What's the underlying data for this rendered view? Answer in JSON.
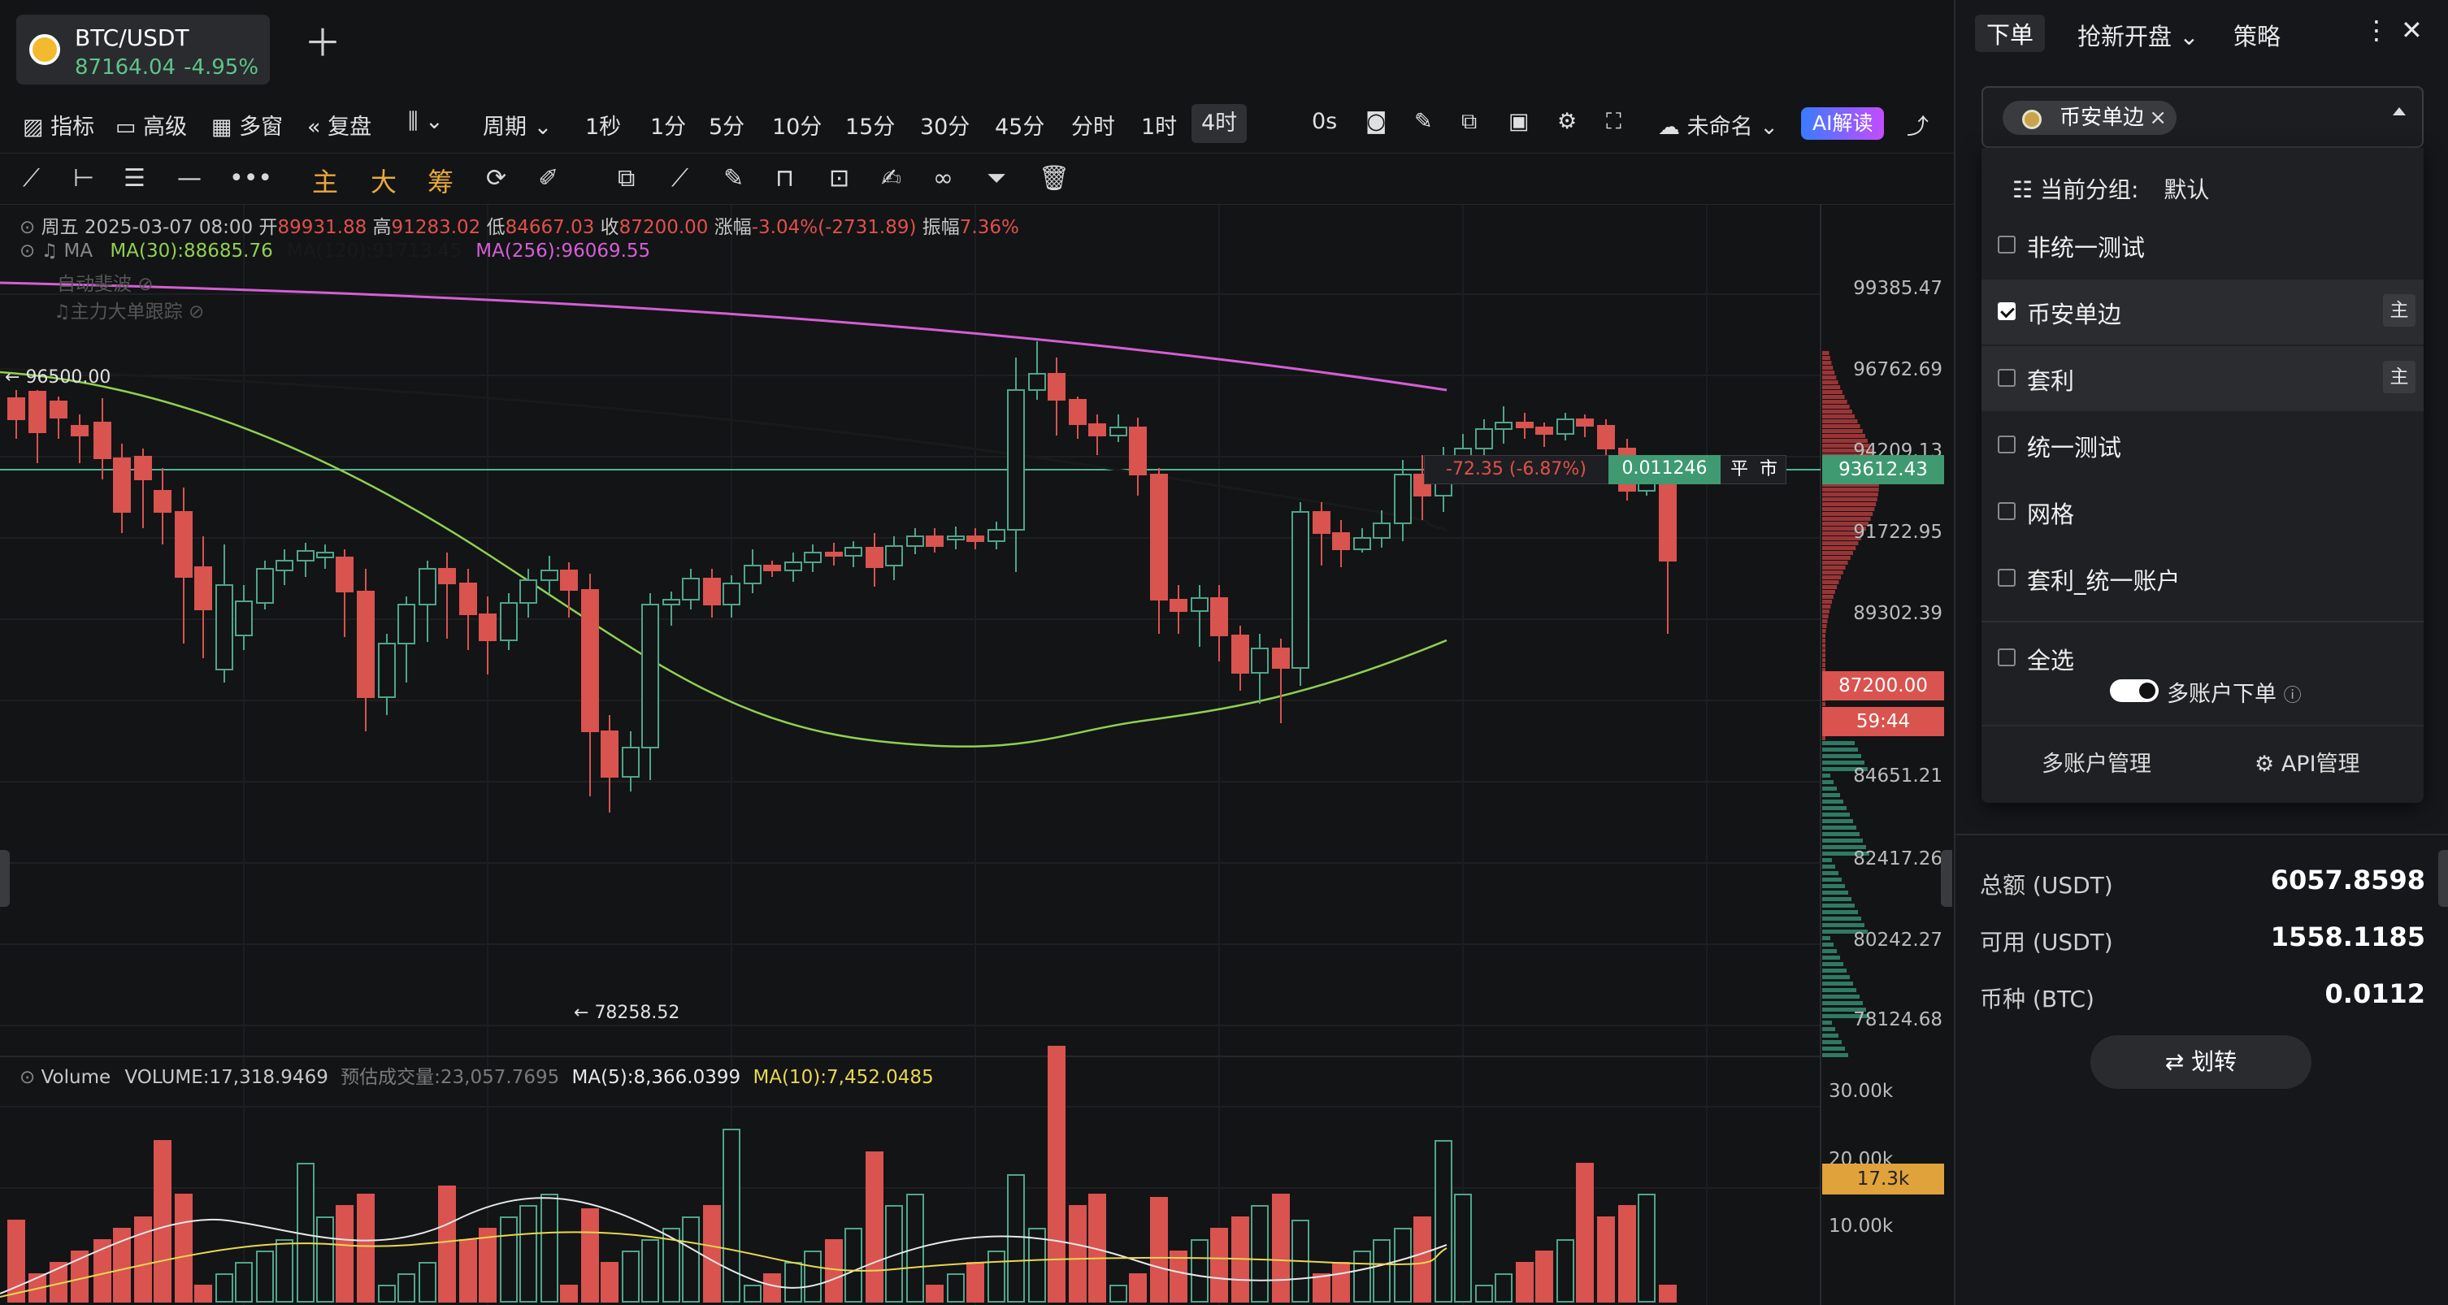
{
  "pair_tab": {
    "symbol": "BTC/USDT",
    "price": "87164.04",
    "change": "-4.95%"
  },
  "toolbar": {
    "indicator": "指标",
    "advanced": "高级",
    "multi_window": "多窗",
    "replay": "复盘",
    "period": "周期",
    "intervals": [
      "1秒",
      "1分",
      "5分",
      "10分",
      "15分",
      "30分",
      "45分",
      "分时",
      "1时",
      "4时"
    ],
    "selected_interval": "4时",
    "timer": "0s",
    "layout_name": "未命名",
    "ai_button": "AI解读"
  },
  "drawing_toolbar": {
    "labels": [
      "主",
      "大",
      "筹"
    ]
  },
  "ohlc": {
    "date": "周五 2025-03-07 08:00",
    "open_label": "开",
    "open": "89931.88",
    "high_label": "高",
    "high": "91283.02",
    "low_label": "低",
    "low": "84667.03",
    "close_label": "收",
    "close": "87200.00",
    "change_label": "涨幅",
    "change": "-3.04%(-2731.89)",
    "amplitude_label": "振幅",
    "amplitude": "7.36%"
  },
  "ma_legend": {
    "name": "MA",
    "ma30": "MA(30):88685.76",
    "ma120": "MA(120):91713.45",
    "ma256": "MA(256):96069.55"
  },
  "overlays": {
    "fib": "自动斐波",
    "whale": "主力大单跟踪"
  },
  "price_axis": [
    "99385.47",
    "96762.69",
    "94209.13",
    "91722.95",
    "89302.39",
    "84651.21",
    "82417.26",
    "80242.27",
    "78124.68"
  ],
  "labels": {
    "high_marker": "96500.00",
    "low_marker": "78258.52",
    "position_pnl": "-72.35 (-6.87%)",
    "position_qty": "0.011246",
    "close_btn": "平",
    "market_btn": "市",
    "position_price": "93612.43",
    "current_price": "87200.00",
    "countdown": "59:44"
  },
  "volume_legend": {
    "name": "Volume",
    "volume": "VOLUME:17,318.9469",
    "est": "预估成交量:23,057.7695",
    "ma5": "MA(5):8,366.0399",
    "ma10": "MA(10):7,452.0485"
  },
  "volume_axis": [
    "30.00k",
    "20.00k",
    "10.00k"
  ],
  "volume_current": "17.3k",
  "colors": {
    "up": "#4fa58a",
    "down": "#d9534f",
    "ma30": "#8fd14f",
    "ma120": "#1a1a1a",
    "ma256": "#d45fd4",
    "vol_ma5": "#e8e8e8",
    "vol_ma10": "#e8d84f"
  },
  "right_panel": {
    "tabs": [
      "下单",
      "抢新开盘",
      "策略"
    ],
    "selected_account": "币安单边",
    "group_label": "当前分组:",
    "group_value": "默认",
    "accounts": [
      {
        "name": "非统一测试",
        "checked": false,
        "main": ""
      },
      {
        "name": "币安单边",
        "checked": true,
        "main": "主"
      },
      {
        "name": "套利",
        "checked": false,
        "main": "主"
      },
      {
        "name": "统一测试",
        "checked": false,
        "main": ""
      },
      {
        "name": "网格",
        "checked": false,
        "main": ""
      },
      {
        "name": "套利_统一账户",
        "checked": false,
        "main": ""
      }
    ],
    "select_all": "全选",
    "multi_order": "多账户下单",
    "manage_accounts": "多账户管理",
    "api_manage": "API管理",
    "balances": [
      {
        "label": "总额 (USDT)",
        "value": "6057.8598"
      },
      {
        "label": "可用 (USDT)",
        "value": "1558.1185"
      },
      {
        "label": "币种 (BTC)",
        "value": "0.0112"
      }
    ],
    "transfer": "划转"
  }
}
